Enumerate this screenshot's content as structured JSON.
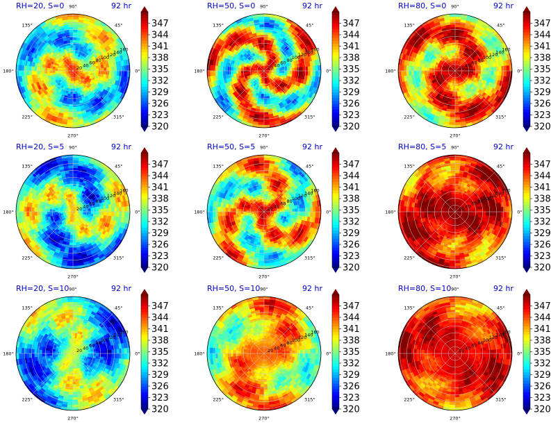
{
  "figure": {
    "time_label": "92 hr",
    "colormap": "jet",
    "colorbar_ticks": [
      "347",
      "344",
      "341",
      "338",
      "335",
      "332",
      "329",
      "326",
      "323",
      "320"
    ],
    "colorbar_range": [
      320,
      350
    ],
    "angle_labels": [
      "90°",
      "45°",
      "0°",
      "315°",
      "270°",
      "225°",
      "180°",
      "135°"
    ],
    "radial_labels": [
      "20",
      "40",
      "60",
      "80",
      "100",
      "120",
      "140",
      "160"
    ]
  },
  "panels": [
    {
      "title": "RH=20, S=0"
    },
    {
      "title": "RH=50, S=0"
    },
    {
      "title": "RH=80, S=0"
    },
    {
      "title": "RH=20, S=5"
    },
    {
      "title": "RH=50, S=5"
    },
    {
      "title": "RH=80, S=5"
    },
    {
      "title": "RH=20, S=10"
    },
    {
      "title": "RH=50, S=10"
    },
    {
      "title": "RH=80, S=10"
    }
  ]
}
